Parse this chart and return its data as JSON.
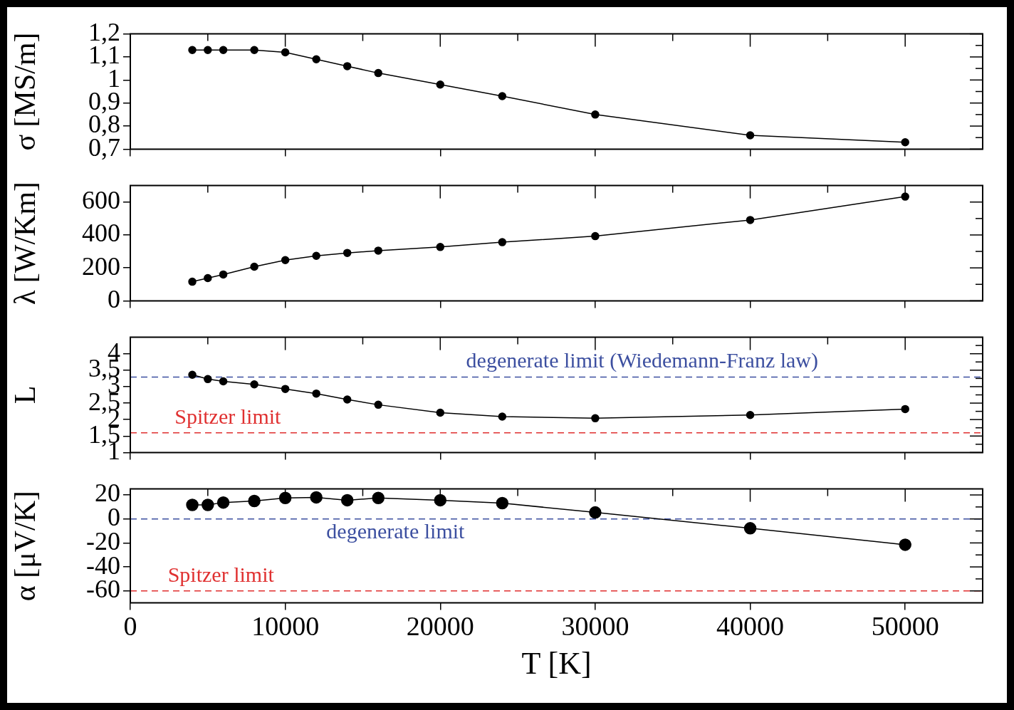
{
  "chart_data": [
    {
      "type": "line",
      "ylabel": "σ [MS/m]",
      "x": [
        4000,
        5000,
        6000,
        8000,
        10000,
        12000,
        14000,
        16000,
        20000,
        24000,
        30000,
        40000,
        50000
      ],
      "xlim": [
        0,
        55000
      ],
      "xticks": [
        0,
        {
          "value": 5000,
          "label": null
        },
        10000,
        {
          "value": 15000,
          "label": null
        },
        20000,
        {
          "value": 25000,
          "label": null
        },
        30000,
        {
          "value": 35000,
          "label": null
        },
        40000,
        {
          "value": 45000,
          "label": null
        },
        50000
      ],
      "ylim": [
        0.7,
        1.2
      ],
      "yticks": [
        {
          "value": 0.7,
          "label": "0,7"
        },
        {
          "value": 0.75,
          "label": null
        },
        {
          "value": 0.8,
          "label": "0,8"
        },
        {
          "value": 0.85,
          "label": null
        },
        {
          "value": 0.9,
          "label": "0,9"
        },
        {
          "value": 0.95,
          "label": null
        },
        {
          "value": 1,
          "label": "1"
        },
        {
          "value": 1.05,
          "label": null
        },
        {
          "value": 1.1,
          "label": "1,1"
        },
        {
          "value": 1.15,
          "label": null
        },
        {
          "value": 1.2,
          "label": "1,2"
        }
      ],
      "tick_labels": "y",
      "marker": "circle",
      "series": [
        {
          "color": "#000000",
          "values": [
            1.13,
            1.13,
            1.13,
            1.13,
            1.12,
            1.09,
            1.06,
            1.03,
            0.98,
            0.93,
            0.85,
            0.76,
            0.73
          ]
        }
      ]
    },
    {
      "type": "line",
      "ylabel": "λ [W/Km]",
      "x": [
        4000,
        5000,
        6000,
        8000,
        10000,
        12000,
        14000,
        16000,
        20000,
        24000,
        30000,
        40000,
        50000
      ],
      "xlim": [
        0,
        55000
      ],
      "xticks": [
        0,
        {
          "value": 5000,
          "label": null
        },
        10000,
        {
          "value": 15000,
          "label": null
        },
        20000,
        {
          "value": 25000,
          "label": null
        },
        30000,
        {
          "value": 35000,
          "label": null
        },
        40000,
        {
          "value": 45000,
          "label": null
        },
        50000
      ],
      "ylim": [
        0,
        700
      ],
      "yticks": [
        0,
        {
          "value": 100,
          "label": null
        },
        200,
        {
          "value": 300,
          "label": null
        },
        400,
        {
          "value": 500,
          "label": null
        },
        600
      ],
      "tick_labels": "y",
      "marker": "circle",
      "series": [
        {
          "color": "#000000",
          "values": [
            116,
            138,
            160,
            207,
            247,
            273,
            291,
            305,
            327,
            356,
            393,
            491,
            633
          ]
        }
      ]
    },
    {
      "type": "line",
      "ylabel": "L",
      "x": [
        4000,
        5000,
        6000,
        8000,
        10000,
        12000,
        14000,
        16000,
        20000,
        24000,
        30000,
        40000,
        50000
      ],
      "xlim": [
        0,
        55000
      ],
      "xticks": [
        0,
        {
          "value": 5000,
          "label": null
        },
        10000,
        {
          "value": 15000,
          "label": null
        },
        20000,
        {
          "value": 25000,
          "label": null
        },
        30000,
        {
          "value": 35000,
          "label": null
        },
        40000,
        {
          "value": 45000,
          "label": null
        },
        50000
      ],
      "ylim": [
        1,
        4.5
      ],
      "yticks": [
        {
          "value": 1,
          "label": "1"
        },
        {
          "value": 1.25,
          "label": null
        },
        {
          "value": 1.5,
          "label": "1,5"
        },
        {
          "value": 1.75,
          "label": null
        },
        {
          "value": 2,
          "label": "2"
        },
        {
          "value": 2.25,
          "label": null
        },
        {
          "value": 2.5,
          "label": "2,5"
        },
        {
          "value": 2.75,
          "label": null
        },
        {
          "value": 3,
          "label": "3"
        },
        {
          "value": 3.25,
          "label": null
        },
        {
          "value": 3.5,
          "label": "3,5"
        },
        {
          "value": 3.75,
          "label": null
        },
        {
          "value": 4,
          "label": "4"
        },
        {
          "value": 4.25,
          "label": null
        }
      ],
      "tick_labels": "y",
      "marker": "circle",
      "series": [
        {
          "color": "#000000",
          "values": [
            3.36,
            3.23,
            3.16,
            3.07,
            2.93,
            2.79,
            2.61,
            2.45,
            2.21,
            2.09,
            2.04,
            2.14,
            2.32
          ]
        }
      ],
      "ref_lines": [
        {
          "axis": "y",
          "value": 3.29,
          "label": "degenerate limit (Wiedemann-Franz law)",
          "color": "#3c4fa0",
          "line_style": "dashed"
        },
        {
          "axis": "y",
          "value": 1.6,
          "label": "Spitzer limit",
          "color": "#e03030",
          "line_style": "dashed"
        }
      ]
    },
    {
      "type": "line",
      "ylabel": "α [μV/K]",
      "xlabel": "T [K]",
      "x": [
        4000,
        5000,
        6000,
        8000,
        10000,
        12000,
        14000,
        16000,
        20000,
        24000,
        30000,
        40000,
        50000
      ],
      "xlim": [
        0,
        55000
      ],
      "xticks": [
        0,
        {
          "value": 5000,
          "label": null
        },
        10000,
        {
          "value": 15000,
          "label": null
        },
        20000,
        {
          "value": 25000,
          "label": null
        },
        30000,
        {
          "value": 35000,
          "label": null
        },
        40000,
        {
          "value": 45000,
          "label": null
        },
        50000
      ],
      "ylim": [
        -70,
        25
      ],
      "yticks": [
        -60,
        {
          "value": -50,
          "label": null
        },
        -40,
        {
          "value": -30,
          "label": null
        },
        -20,
        {
          "value": -10,
          "label": null
        },
        0,
        {
          "value": 10,
          "label": null
        },
        20
      ],
      "marker": "circle",
      "series": [
        {
          "color": "#000000",
          "values": [
            11.7,
            11.7,
            13.7,
            15,
            17.5,
            18,
            15.6,
            17.5,
            15.6,
            13.2,
            5.4,
            -7.8,
            -21.5
          ]
        }
      ],
      "ref_lines": [
        {
          "axis": "y",
          "value": 0,
          "label": "degenerate limit",
          "color": "#3c4fa0",
          "line_style": "dashed"
        },
        {
          "axis": "y",
          "value": -60,
          "label": "Spitzer limit",
          "color": "#e03030",
          "line_style": "dashed"
        }
      ]
    }
  ]
}
